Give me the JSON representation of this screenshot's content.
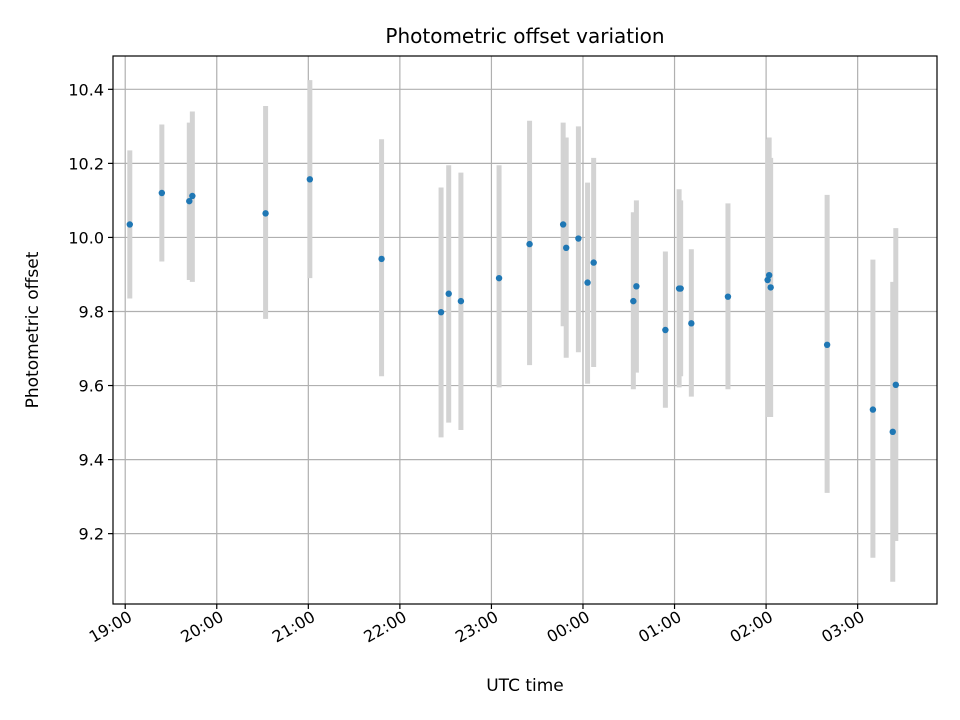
{
  "chart_data": {
    "type": "scatter",
    "title": "Photometric offset variation",
    "xlabel": "UTC time",
    "ylabel": "Photometric offset",
    "grid": true,
    "point_color": "#1f77b4",
    "errorbar_color": "#d3d3d3",
    "xlim": [
      "18:52",
      "03:52"
    ],
    "ylim": [
      9.01,
      10.49
    ],
    "x_ticks": [
      "19:00",
      "20:00",
      "21:00",
      "22:00",
      "23:00",
      "00:00",
      "01:00",
      "02:00",
      "03:00"
    ],
    "y_ticks": [
      9.2,
      9.4,
      9.6,
      9.8,
      10.0,
      10.2,
      10.4
    ],
    "y_tick_labels": [
      "9.2",
      "9.4",
      "9.6",
      "9.8",
      "10.0",
      "10.2",
      "10.4"
    ],
    "points": [
      {
        "t": "19:03",
        "y": 10.035,
        "lo": 9.835,
        "hi": 10.235
      },
      {
        "t": "19:24",
        "y": 10.12,
        "lo": 9.935,
        "hi": 10.305
      },
      {
        "t": "19:42",
        "y": 10.098,
        "lo": 9.885,
        "hi": 10.31
      },
      {
        "t": "19:44",
        "y": 10.112,
        "lo": 9.88,
        "hi": 10.34
      },
      {
        "t": "20:32",
        "y": 10.065,
        "lo": 9.78,
        "hi": 10.355
      },
      {
        "t": "21:01",
        "y": 10.157,
        "lo": 9.89,
        "hi": 10.425
      },
      {
        "t": "21:48",
        "y": 9.942,
        "lo": 9.625,
        "hi": 10.265
      },
      {
        "t": "22:27",
        "y": 9.798,
        "lo": 9.46,
        "hi": 10.135
      },
      {
        "t": "22:32",
        "y": 9.848,
        "lo": 9.5,
        "hi": 10.195
      },
      {
        "t": "22:40",
        "y": 9.828,
        "lo": 9.48,
        "hi": 10.175
      },
      {
        "t": "23:05",
        "y": 9.89,
        "lo": 9.595,
        "hi": 10.195
      },
      {
        "t": "23:25",
        "y": 9.982,
        "lo": 9.655,
        "hi": 10.315
      },
      {
        "t": "23:47",
        "y": 10.035,
        "lo": 9.76,
        "hi": 10.31
      },
      {
        "t": "23:49",
        "y": 9.972,
        "lo": 9.675,
        "hi": 10.27
      },
      {
        "t": "23:57",
        "y": 9.997,
        "lo": 9.69,
        "hi": 10.3
      },
      {
        "t": "00:03",
        "y": 9.878,
        "lo": 9.605,
        "hi": 10.148
      },
      {
        "t": "00:07",
        "y": 9.932,
        "lo": 9.65,
        "hi": 10.215
      },
      {
        "t": "00:33",
        "y": 9.828,
        "lo": 9.59,
        "hi": 10.068
      },
      {
        "t": "00:35",
        "y": 9.868,
        "lo": 9.635,
        "hi": 10.1
      },
      {
        "t": "00:54",
        "y": 9.75,
        "lo": 9.54,
        "hi": 9.962
      },
      {
        "t": "01:03",
        "y": 9.862,
        "lo": 9.595,
        "hi": 10.13
      },
      {
        "t": "01:04",
        "y": 9.862,
        "lo": 9.625,
        "hi": 10.1
      },
      {
        "t": "01:11",
        "y": 9.768,
        "lo": 9.57,
        "hi": 9.968
      },
      {
        "t": "01:35",
        "y": 9.84,
        "lo": 9.59,
        "hi": 10.092
      },
      {
        "t": "02:01",
        "y": 9.885,
        "lo": 9.515,
        "hi": 10.265
      },
      {
        "t": "02:02",
        "y": 9.898,
        "lo": 9.53,
        "hi": 10.27
      },
      {
        "t": "02:03",
        "y": 9.865,
        "lo": 9.515,
        "hi": 10.215
      },
      {
        "t": "02:40",
        "y": 9.71,
        "lo": 9.31,
        "hi": 10.115
      },
      {
        "t": "03:10",
        "y": 9.535,
        "lo": 9.135,
        "hi": 9.94
      },
      {
        "t": "03:23",
        "y": 9.475,
        "lo": 9.07,
        "hi": 9.88
      },
      {
        "t": "03:25",
        "y": 9.602,
        "lo": 9.18,
        "hi": 10.025
      }
    ]
  }
}
